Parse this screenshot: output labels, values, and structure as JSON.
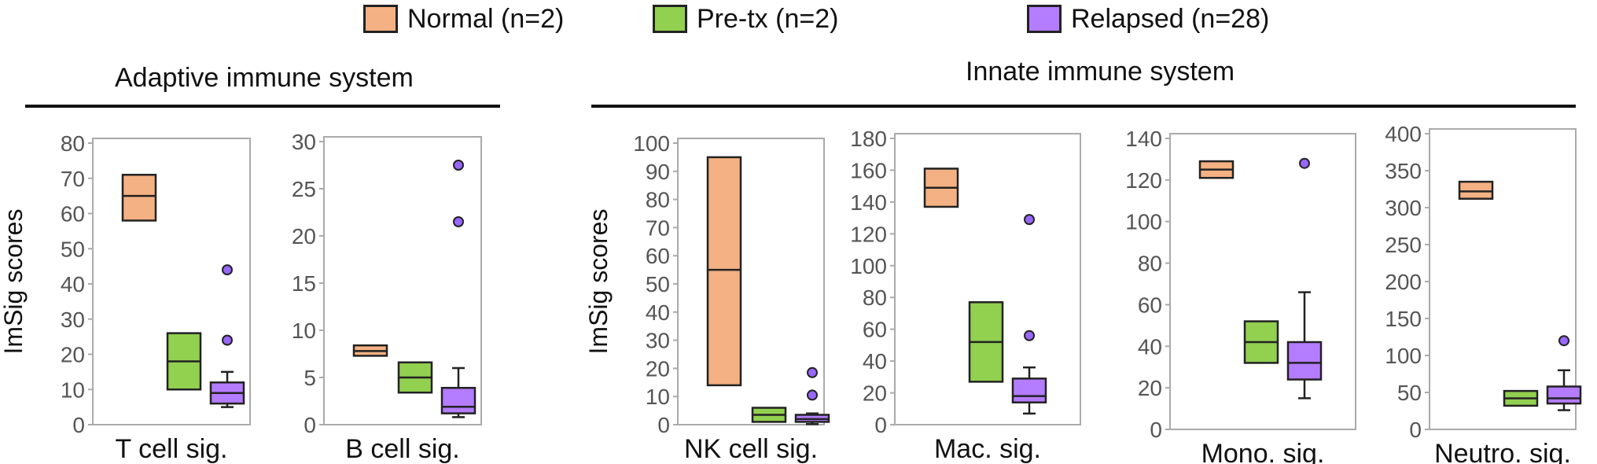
{
  "legend": [
    {
      "label": "Normal (n=2)",
      "color": "#F4B183"
    },
    {
      "label": "Pre-tx (n=2)",
      "color": "#92D050"
    },
    {
      "label": "Relapsed (n=28)",
      "color": "#B47CFF"
    }
  ],
  "groups": [
    {
      "title": "Adaptive immune system"
    },
    {
      "title": "Innate immune system"
    }
  ],
  "colors": {
    "normal": "#F4B183",
    "pretx": "#92D050",
    "relapsed": "#B47CFF",
    "outlier": "#9966FF",
    "stroke": "#222222"
  },
  "chart_data": [
    {
      "type": "box",
      "xlabel": "T cell sig.",
      "ylabel": "ImSig scores",
      "ylim": [
        0,
        80
      ],
      "yticks": [
        0,
        10,
        20,
        30,
        40,
        50,
        60,
        70,
        80
      ],
      "series": [
        {
          "name": "Normal (n=2)",
          "q1": 58,
          "median": 65,
          "q3": 71,
          "whisker_low": null,
          "whisker_high": null,
          "outliers": []
        },
        {
          "name": "Pre-tx (n=2)",
          "q1": 10,
          "median": 18,
          "q3": 26,
          "whisker_low": null,
          "whisker_high": null,
          "outliers": []
        },
        {
          "name": "Relapsed (n=28)",
          "q1": 6,
          "median": 9,
          "q3": 12,
          "whisker_low": 5,
          "whisker_high": 15,
          "outliers": [
            24,
            44
          ]
        }
      ]
    },
    {
      "type": "box",
      "xlabel": "B cell sig.",
      "ylabel": "",
      "ylim": [
        0,
        30
      ],
      "yticks": [
        0,
        5,
        10,
        15,
        20,
        25,
        30
      ],
      "series": [
        {
          "name": "Normal (n=2)",
          "q1": 7.3,
          "median": 7.8,
          "q3": 8.4,
          "whisker_low": null,
          "whisker_high": null,
          "outliers": []
        },
        {
          "name": "Pre-tx (n=2)",
          "q1": 3.4,
          "median": 5,
          "q3": 6.6,
          "whisker_low": null,
          "whisker_high": null,
          "outliers": []
        },
        {
          "name": "Relapsed (n=28)",
          "q1": 1.2,
          "median": 1.9,
          "q3": 3.9,
          "whisker_low": 0.8,
          "whisker_high": 6,
          "outliers": [
            21.5,
            27.5
          ]
        }
      ]
    },
    {
      "type": "box",
      "xlabel": "NK cell sig.",
      "ylabel": "ImSig scores",
      "ylim": [
        0,
        100
      ],
      "yticks": [
        0,
        10,
        20,
        30,
        40,
        50,
        60,
        70,
        80,
        90,
        100
      ],
      "series": [
        {
          "name": "Normal (n=2)",
          "q1": 14,
          "median": 55,
          "q3": 95,
          "whisker_low": null,
          "whisker_high": null,
          "outliers": []
        },
        {
          "name": "Pre-tx (n=2)",
          "q1": 1,
          "median": 3.5,
          "q3": 6,
          "whisker_low": null,
          "whisker_high": null,
          "outliers": []
        },
        {
          "name": "Relapsed (n=28)",
          "q1": 1,
          "median": 2,
          "q3": 3.5,
          "whisker_low": 0.2,
          "whisker_high": 4,
          "outliers": [
            10.5,
            18.5
          ]
        }
      ]
    },
    {
      "type": "box",
      "xlabel": "Mac. sig.",
      "ylabel": "",
      "ylim": [
        0,
        180
      ],
      "yticks": [
        0,
        20,
        40,
        60,
        80,
        100,
        120,
        140,
        160,
        180
      ],
      "series": [
        {
          "name": "Normal (n=2)",
          "q1": 137,
          "median": 149,
          "q3": 161,
          "whisker_low": null,
          "whisker_high": null,
          "outliers": []
        },
        {
          "name": "Pre-tx (n=2)",
          "q1": 27,
          "median": 52,
          "q3": 77,
          "whisker_low": null,
          "whisker_high": null,
          "outliers": []
        },
        {
          "name": "Relapsed (n=28)",
          "q1": 14,
          "median": 18,
          "q3": 29,
          "whisker_low": 7,
          "whisker_high": 36,
          "outliers": [
            56,
            129
          ]
        }
      ]
    },
    {
      "type": "box",
      "xlabel": "Mono. sig.",
      "ylabel": "",
      "ylim": [
        0,
        140
      ],
      "yticks": [
        0,
        20,
        40,
        60,
        80,
        100,
        120,
        140
      ],
      "series": [
        {
          "name": "Normal (n=2)",
          "q1": 121,
          "median": 125,
          "q3": 129,
          "whisker_low": null,
          "whisker_high": null,
          "outliers": []
        },
        {
          "name": "Pre-tx (n=2)",
          "q1": 32,
          "median": 42,
          "q3": 52,
          "whisker_low": null,
          "whisker_high": null,
          "outliers": []
        },
        {
          "name": "Relapsed (n=28)",
          "q1": 24,
          "median": 32,
          "q3": 42,
          "whisker_low": 15,
          "whisker_high": 66,
          "outliers": [
            128
          ]
        }
      ]
    },
    {
      "type": "box",
      "xlabel": "Neutro. sig.",
      "ylabel": "",
      "ylim": [
        0,
        400
      ],
      "yticks": [
        0,
        50,
        100,
        150,
        200,
        250,
        300,
        350,
        400
      ],
      "series": [
        {
          "name": "Normal (n=2)",
          "q1": 312,
          "median": 322,
          "q3": 335,
          "whisker_low": null,
          "whisker_high": null,
          "outliers": []
        },
        {
          "name": "Pre-tx (n=2)",
          "q1": 32,
          "median": 42,
          "q3": 52,
          "whisker_low": null,
          "whisker_high": null,
          "outliers": []
        },
        {
          "name": "Relapsed (n=28)",
          "q1": 35,
          "median": 42,
          "q3": 58,
          "whisker_low": 26,
          "whisker_high": 80,
          "outliers": [
            120
          ]
        }
      ]
    }
  ]
}
